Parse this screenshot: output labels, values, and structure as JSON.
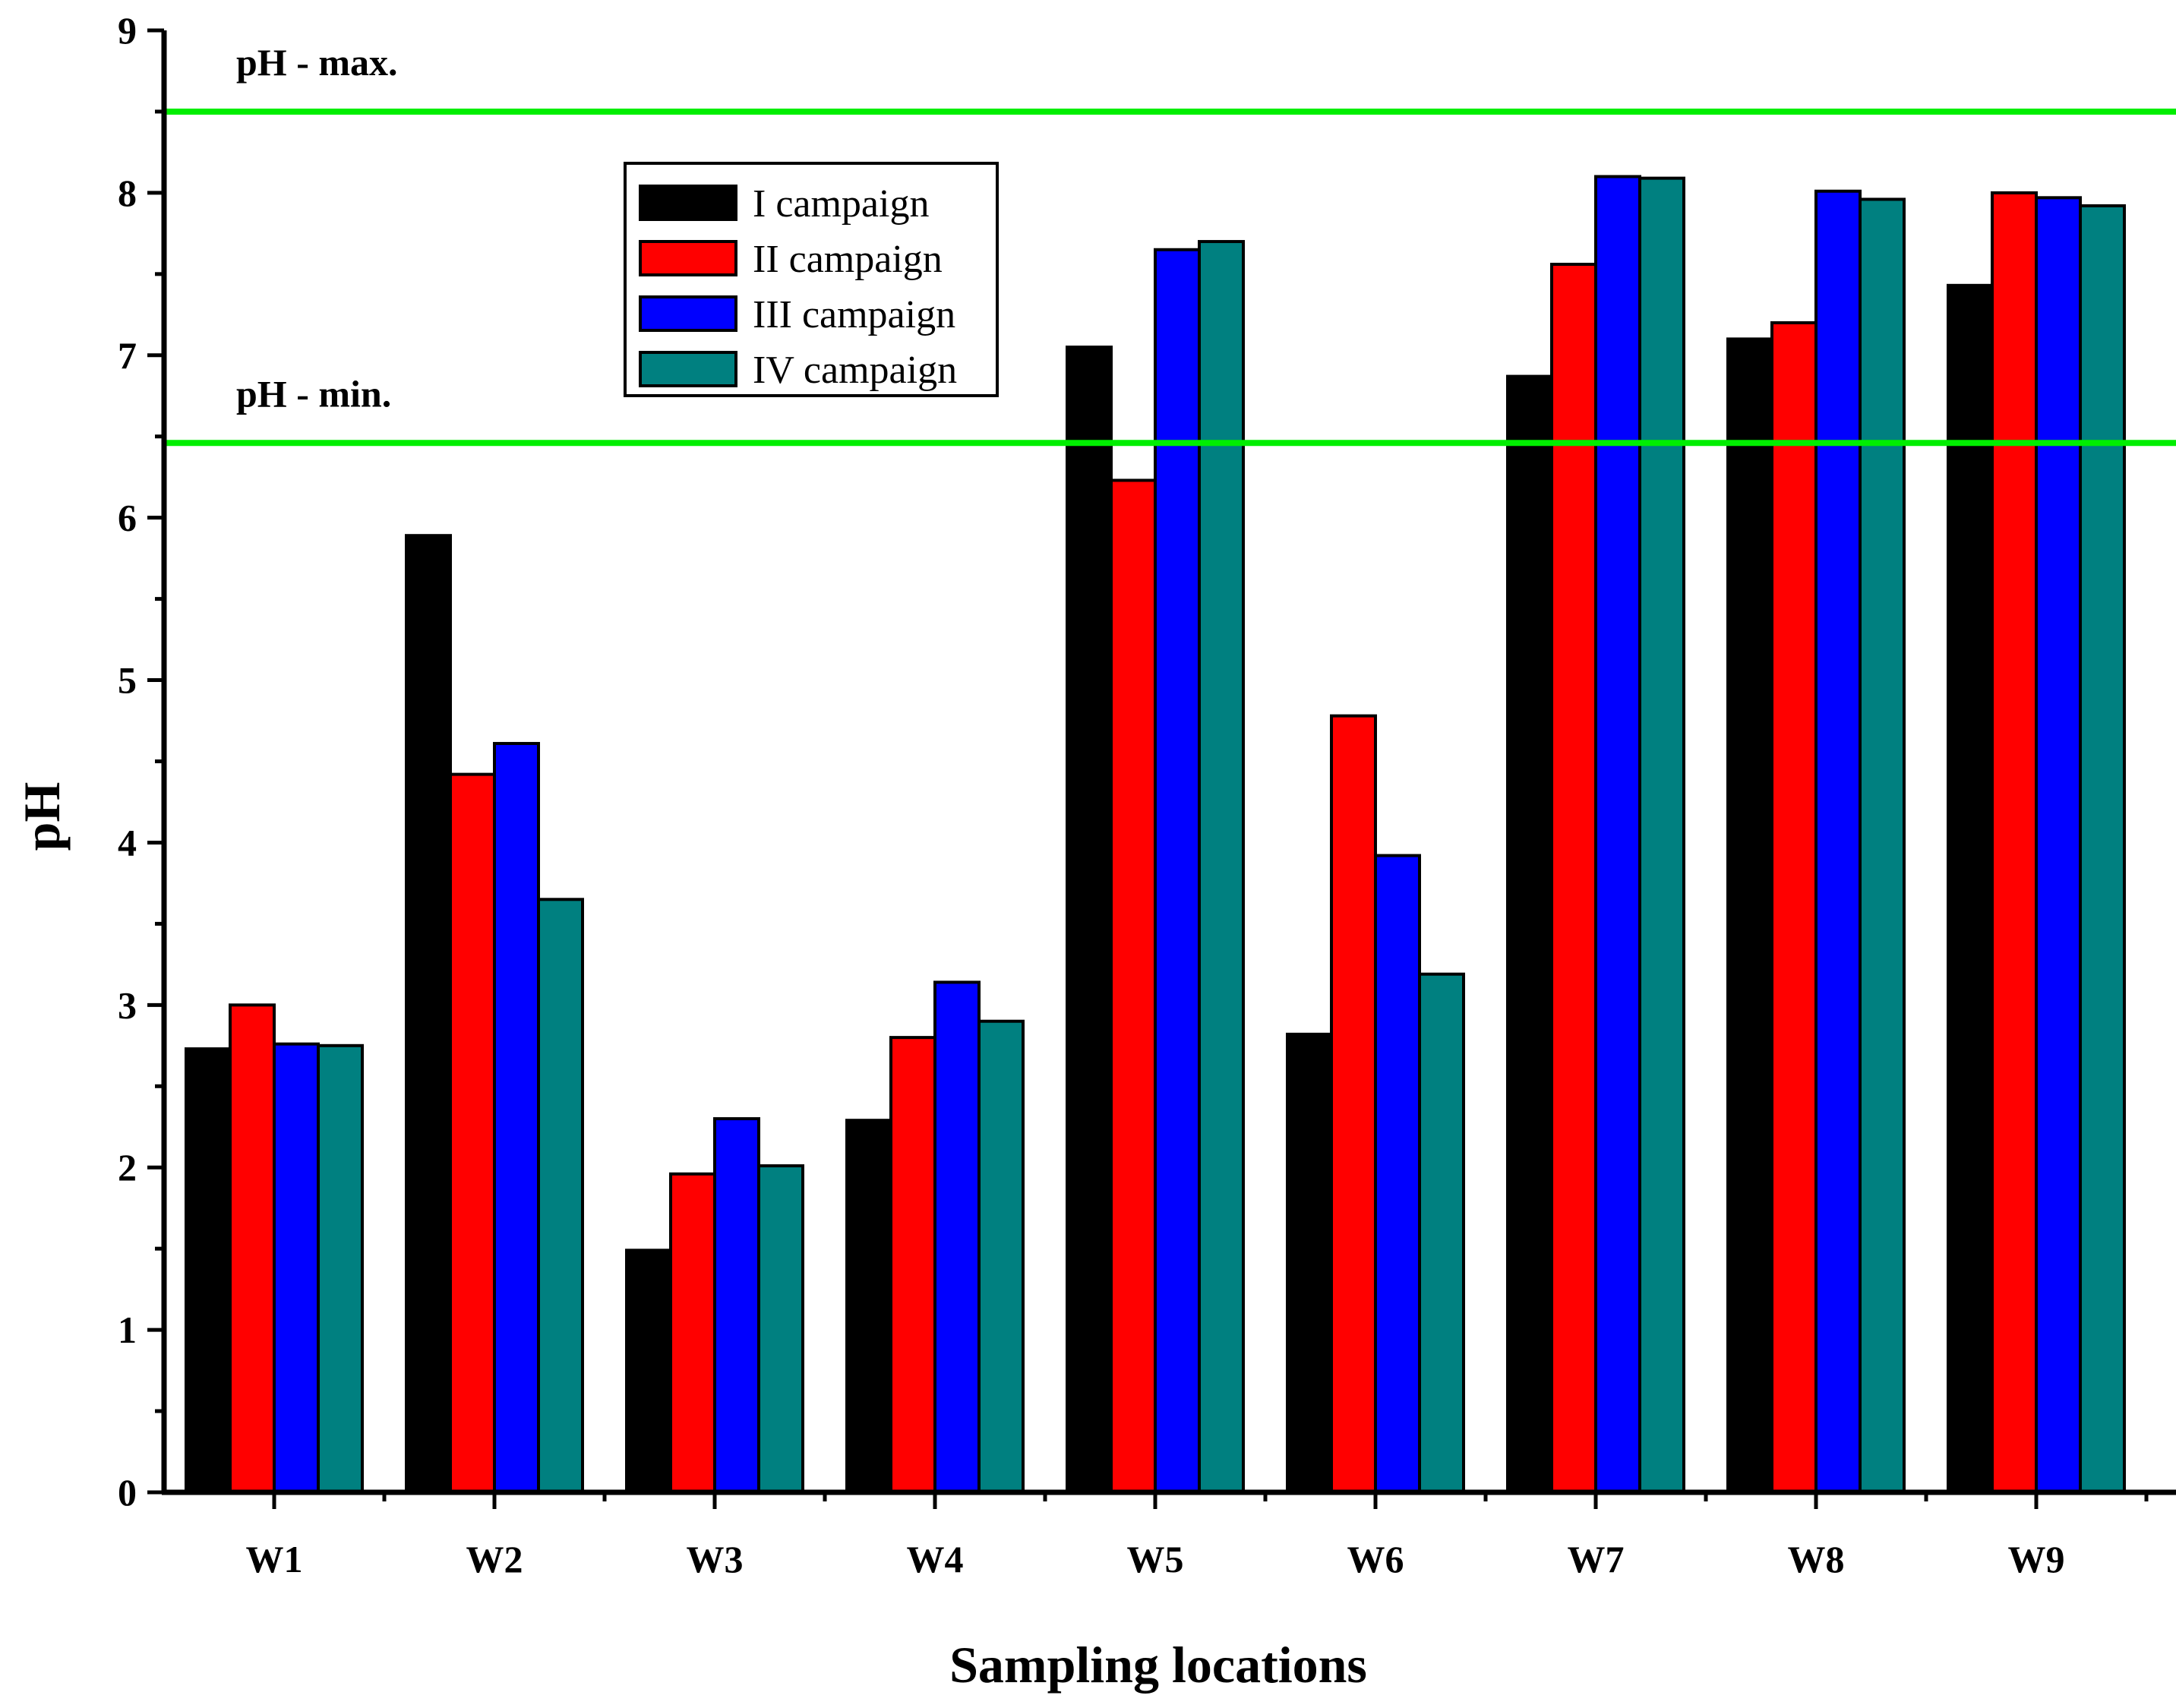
{
  "chart_data": {
    "type": "bar",
    "title": "",
    "xlabel": "Sampling locations",
    "ylabel": "pH",
    "ylim": [
      0,
      9
    ],
    "yticks": [
      "0",
      "1",
      "2",
      "3",
      "4",
      "5",
      "6",
      "7",
      "8",
      "9"
    ],
    "categories": [
      "W1",
      "W2",
      "W3",
      "W4",
      "W5",
      "W6",
      "W7",
      "W8",
      "W9"
    ],
    "series": [
      {
        "name": "I campaign",
        "color": "#000000",
        "values": [
          2.73,
          5.89,
          1.49,
          2.29,
          7.05,
          2.82,
          6.87,
          7.1,
          7.43
        ]
      },
      {
        "name": "II campaign",
        "color": "#ff0000",
        "values": [
          3.0,
          4.42,
          1.96,
          2.8,
          6.23,
          4.78,
          7.56,
          7.2,
          8.0
        ]
      },
      {
        "name": "III campaign",
        "color": "#0000ff",
        "values": [
          2.76,
          4.61,
          2.3,
          3.14,
          7.65,
          3.92,
          8.1,
          8.01,
          7.97
        ]
      },
      {
        "name": "IV campaign",
        "color": "#008080",
        "values": [
          2.75,
          3.65,
          2.01,
          2.9,
          7.7,
          3.19,
          8.09,
          7.96,
          7.92
        ]
      }
    ],
    "reference_lines": [
      {
        "label": "pH  - max.",
        "value": 8.5,
        "color": "#00ee00"
      },
      {
        "label": "pH  - min.",
        "value": 6.46,
        "color": "#00ee00"
      }
    ],
    "legend": {
      "position": "top-center"
    }
  }
}
